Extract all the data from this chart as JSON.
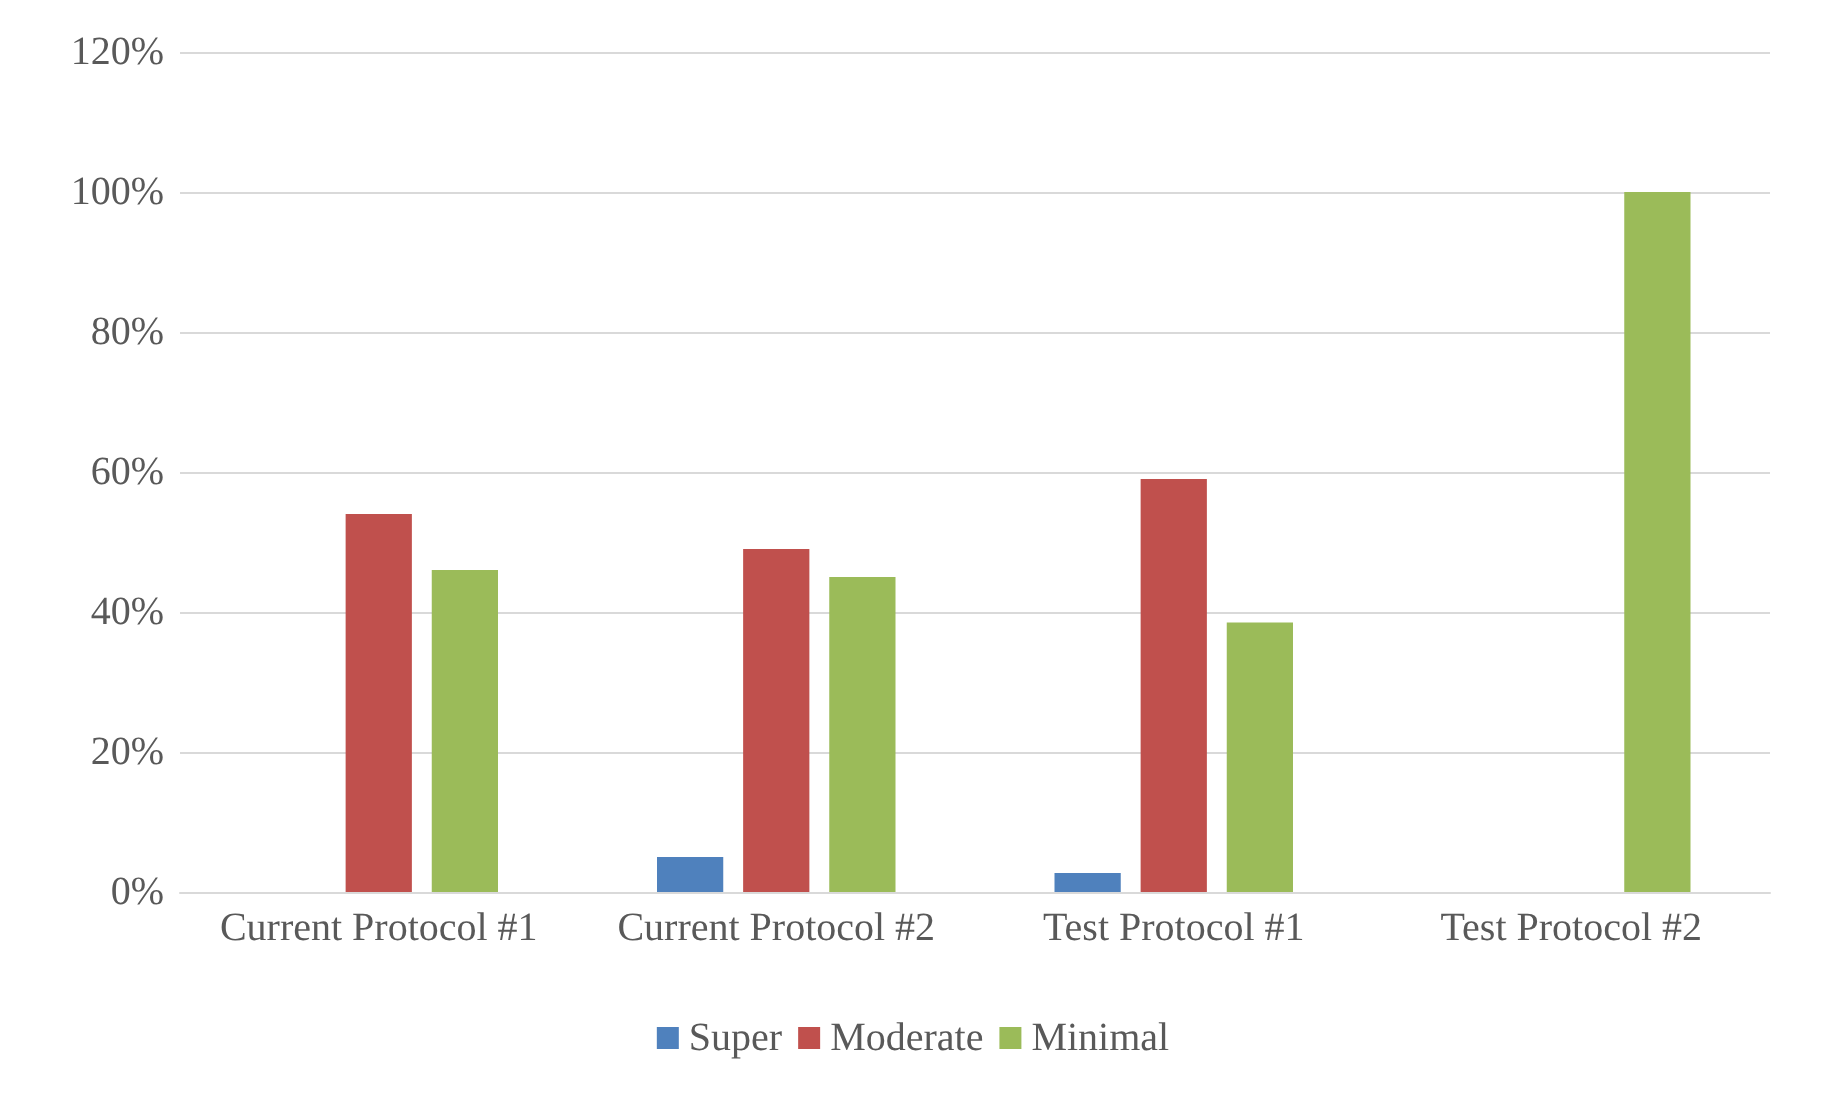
{
  "chart_data": {
    "type": "bar",
    "categories": [
      "Current Protocol #1",
      "Current Protocol #2",
      "Test Protocol #1",
      "Test Protocol #2"
    ],
    "series": [
      {
        "name": "Super",
        "color": "#4f81bd",
        "values": [
          0,
          5,
          2.7,
          0
        ]
      },
      {
        "name": "Moderate",
        "color": "#c0504d",
        "values": [
          54,
          49,
          59,
          0
        ]
      },
      {
        "name": "Minimal",
        "color": "#9bbb59",
        "values": [
          46,
          45,
          38.5,
          100
        ]
      }
    ],
    "ylim": [
      0,
      120
    ],
    "yticks": [
      {
        "value": 0,
        "label": "0%"
      },
      {
        "value": 20,
        "label": "20%"
      },
      {
        "value": 40,
        "label": "40%"
      },
      {
        "value": 60,
        "label": "60%"
      },
      {
        "value": 80,
        "label": "80%"
      },
      {
        "value": 100,
        "label": "100%"
      },
      {
        "value": 120,
        "label": "120%"
      }
    ],
    "grid": "y",
    "legend": "bottom"
  }
}
